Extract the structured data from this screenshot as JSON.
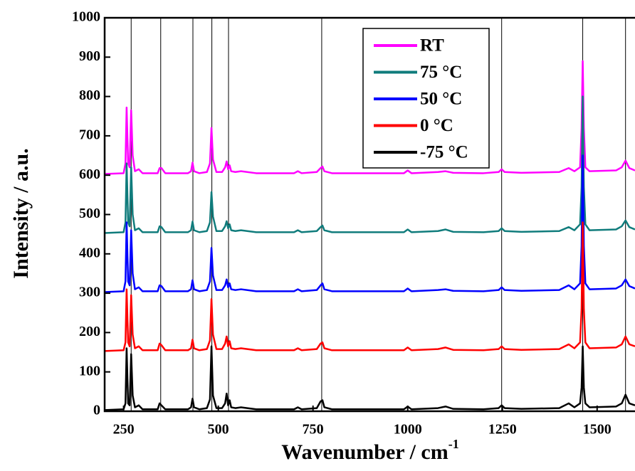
{
  "chart_data": {
    "type": "line",
    "y_label": "Intensity / a.u.",
    "x_label": "Wavenumber / cm",
    "x_label_sup": "-1",
    "xlim": [
      200,
      1600
    ],
    "ylim": [
      0,
      1000
    ],
    "xticks": [
      250,
      500,
      750,
      1000,
      1250,
      1500
    ],
    "yticks": [
      0,
      100,
      200,
      300,
      400,
      500,
      600,
      700,
      800,
      900,
      1000
    ],
    "reference_lines": [
      270,
      348,
      433,
      483,
      527,
      773,
      1248,
      1462,
      1575
    ],
    "legend": "upper right",
    "x": [
      200,
      250,
      255,
      258,
      262,
      266,
      270,
      274,
      280,
      290,
      300,
      340,
      345,
      350,
      360,
      420,
      428,
      432,
      436,
      450,
      470,
      478,
      482,
      486,
      495,
      510,
      518,
      522,
      526,
      530,
      534,
      545,
      560,
      600,
      700,
      710,
      720,
      760,
      770,
      775,
      780,
      800,
      900,
      990,
      1000,
      1010,
      1080,
      1100,
      1120,
      1200,
      1240,
      1248,
      1256,
      1300,
      1400,
      1425,
      1440,
      1455,
      1459,
      1462,
      1465,
      1469,
      1480,
      1550,
      1565,
      1575,
      1585,
      1600
    ],
    "series": [
      {
        "name": "RT",
        "color": "#ff00ff",
        "values": [
          603,
          605,
          630,
          772,
          630,
          620,
          765,
          650,
          610,
          615,
          605,
          605,
          618,
          618,
          605,
          605,
          610,
          632,
          610,
          605,
          608,
          630,
          720,
          640,
          608,
          608,
          620,
          635,
          615,
          625,
          610,
          608,
          610,
          605,
          605,
          610,
          605,
          608,
          618,
          622,
          610,
          605,
          605,
          605,
          612,
          605,
          608,
          610,
          606,
          605,
          608,
          615,
          608,
          606,
          608,
          618,
          610,
          620,
          720,
          890,
          720,
          620,
          610,
          612,
          620,
          637,
          618,
          612
        ]
      },
      {
        "name": "75 °C",
        "color": "#107c7c",
        "values": [
          453,
          455,
          480,
          630,
          480,
          470,
          620,
          500,
          460,
          465,
          455,
          455,
          470,
          468,
          455,
          455,
          460,
          482,
          460,
          455,
          458,
          480,
          557,
          495,
          458,
          458,
          470,
          483,
          465,
          475,
          460,
          458,
          460,
          455,
          455,
          460,
          455,
          458,
          468,
          472,
          460,
          455,
          455,
          455,
          462,
          455,
          458,
          462,
          456,
          455,
          458,
          465,
          458,
          456,
          458,
          468,
          460,
          475,
          570,
          800,
          570,
          475,
          460,
          462,
          470,
          485,
          468,
          462
        ]
      },
      {
        "name": "50 °C",
        "color": "#0000ff",
        "values": [
          303,
          305,
          330,
          480,
          330,
          320,
          460,
          350,
          310,
          315,
          305,
          305,
          320,
          318,
          305,
          305,
          310,
          333,
          310,
          305,
          308,
          330,
          415,
          345,
          308,
          308,
          320,
          335,
          315,
          325,
          310,
          308,
          310,
          305,
          305,
          310,
          305,
          308,
          320,
          325,
          310,
          305,
          305,
          305,
          312,
          305,
          308,
          310,
          306,
          305,
          308,
          315,
          308,
          306,
          308,
          320,
          310,
          325,
          420,
          650,
          420,
          325,
          310,
          312,
          320,
          335,
          318,
          312
        ]
      },
      {
        "name": "0 °C",
        "color": "#ff0000",
        "values": [
          153,
          155,
          175,
          310,
          175,
          165,
          295,
          195,
          160,
          165,
          155,
          155,
          172,
          168,
          155,
          155,
          160,
          182,
          160,
          155,
          158,
          180,
          285,
          195,
          158,
          158,
          172,
          190,
          165,
          178,
          160,
          158,
          160,
          155,
          155,
          160,
          155,
          158,
          172,
          175,
          160,
          155,
          155,
          155,
          162,
          155,
          158,
          162,
          156,
          155,
          158,
          165,
          158,
          156,
          158,
          170,
          160,
          175,
          260,
          480,
          260,
          175,
          160,
          162,
          170,
          190,
          170,
          165
        ]
      },
      {
        "name": "-75 °C",
        "color": "#000000",
        "values": [
          3,
          5,
          20,
          160,
          20,
          15,
          145,
          40,
          10,
          15,
          5,
          5,
          20,
          15,
          5,
          5,
          10,
          32,
          10,
          5,
          8,
          30,
          165,
          40,
          8,
          8,
          20,
          45,
          15,
          28,
          10,
          8,
          10,
          5,
          5,
          10,
          5,
          8,
          25,
          28,
          10,
          5,
          5,
          5,
          12,
          5,
          8,
          12,
          6,
          5,
          8,
          15,
          8,
          6,
          8,
          20,
          10,
          20,
          60,
          165,
          60,
          20,
          10,
          12,
          20,
          42,
          20,
          15
        ]
      }
    ]
  }
}
